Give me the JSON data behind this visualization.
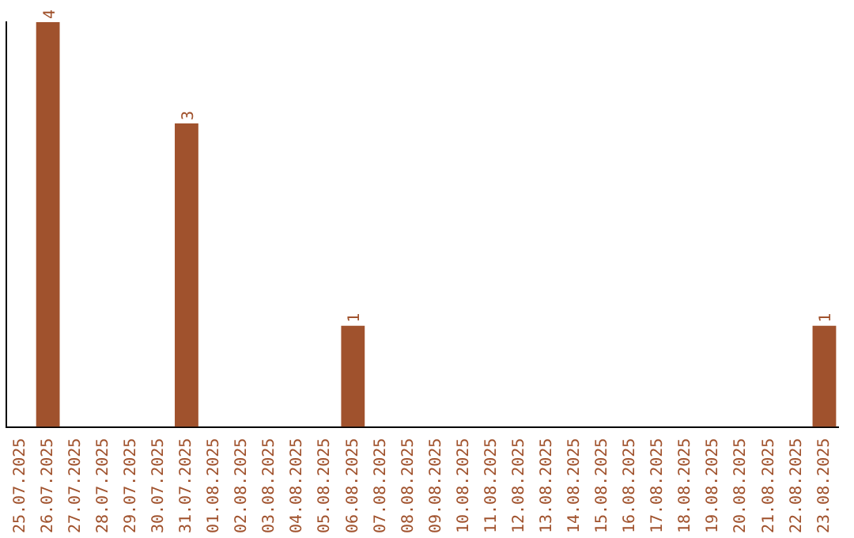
{
  "chart_data": {
    "type": "bar",
    "categories": [
      "25.07.2025",
      "26.07.2025",
      "27.07.2025",
      "28.07.2025",
      "29.07.2025",
      "30.07.2025",
      "31.07.2025",
      "01.08.2025",
      "02.08.2025",
      "03.08.2025",
      "04.08.2025",
      "05.08.2025",
      "06.08.2025",
      "07.08.2025",
      "08.08.2025",
      "09.08.2025",
      "10.08.2025",
      "11.08.2025",
      "12.08.2025",
      "13.08.2025",
      "14.08.2025",
      "15.08.2025",
      "16.08.2025",
      "17.08.2025",
      "18.08.2025",
      "19.08.2025",
      "20.08.2025",
      "21.08.2025",
      "22.08.2025",
      "23.08.2025"
    ],
    "values": [
      0,
      4,
      0,
      0,
      0,
      0,
      3,
      0,
      0,
      0,
      0,
      0,
      1,
      0,
      0,
      0,
      0,
      0,
      0,
      0,
      0,
      0,
      0,
      0,
      0,
      0,
      0,
      0,
      0,
      1
    ],
    "value_labels": [
      null,
      "4",
      null,
      null,
      null,
      null,
      "3",
      null,
      null,
      null,
      null,
      null,
      "1",
      null,
      null,
      null,
      null,
      null,
      null,
      null,
      null,
      null,
      null,
      null,
      null,
      null,
      null,
      null,
      null,
      "1"
    ],
    "color": "#a0522d",
    "grid": false,
    "legend": false,
    "tick_labels": "x"
  }
}
